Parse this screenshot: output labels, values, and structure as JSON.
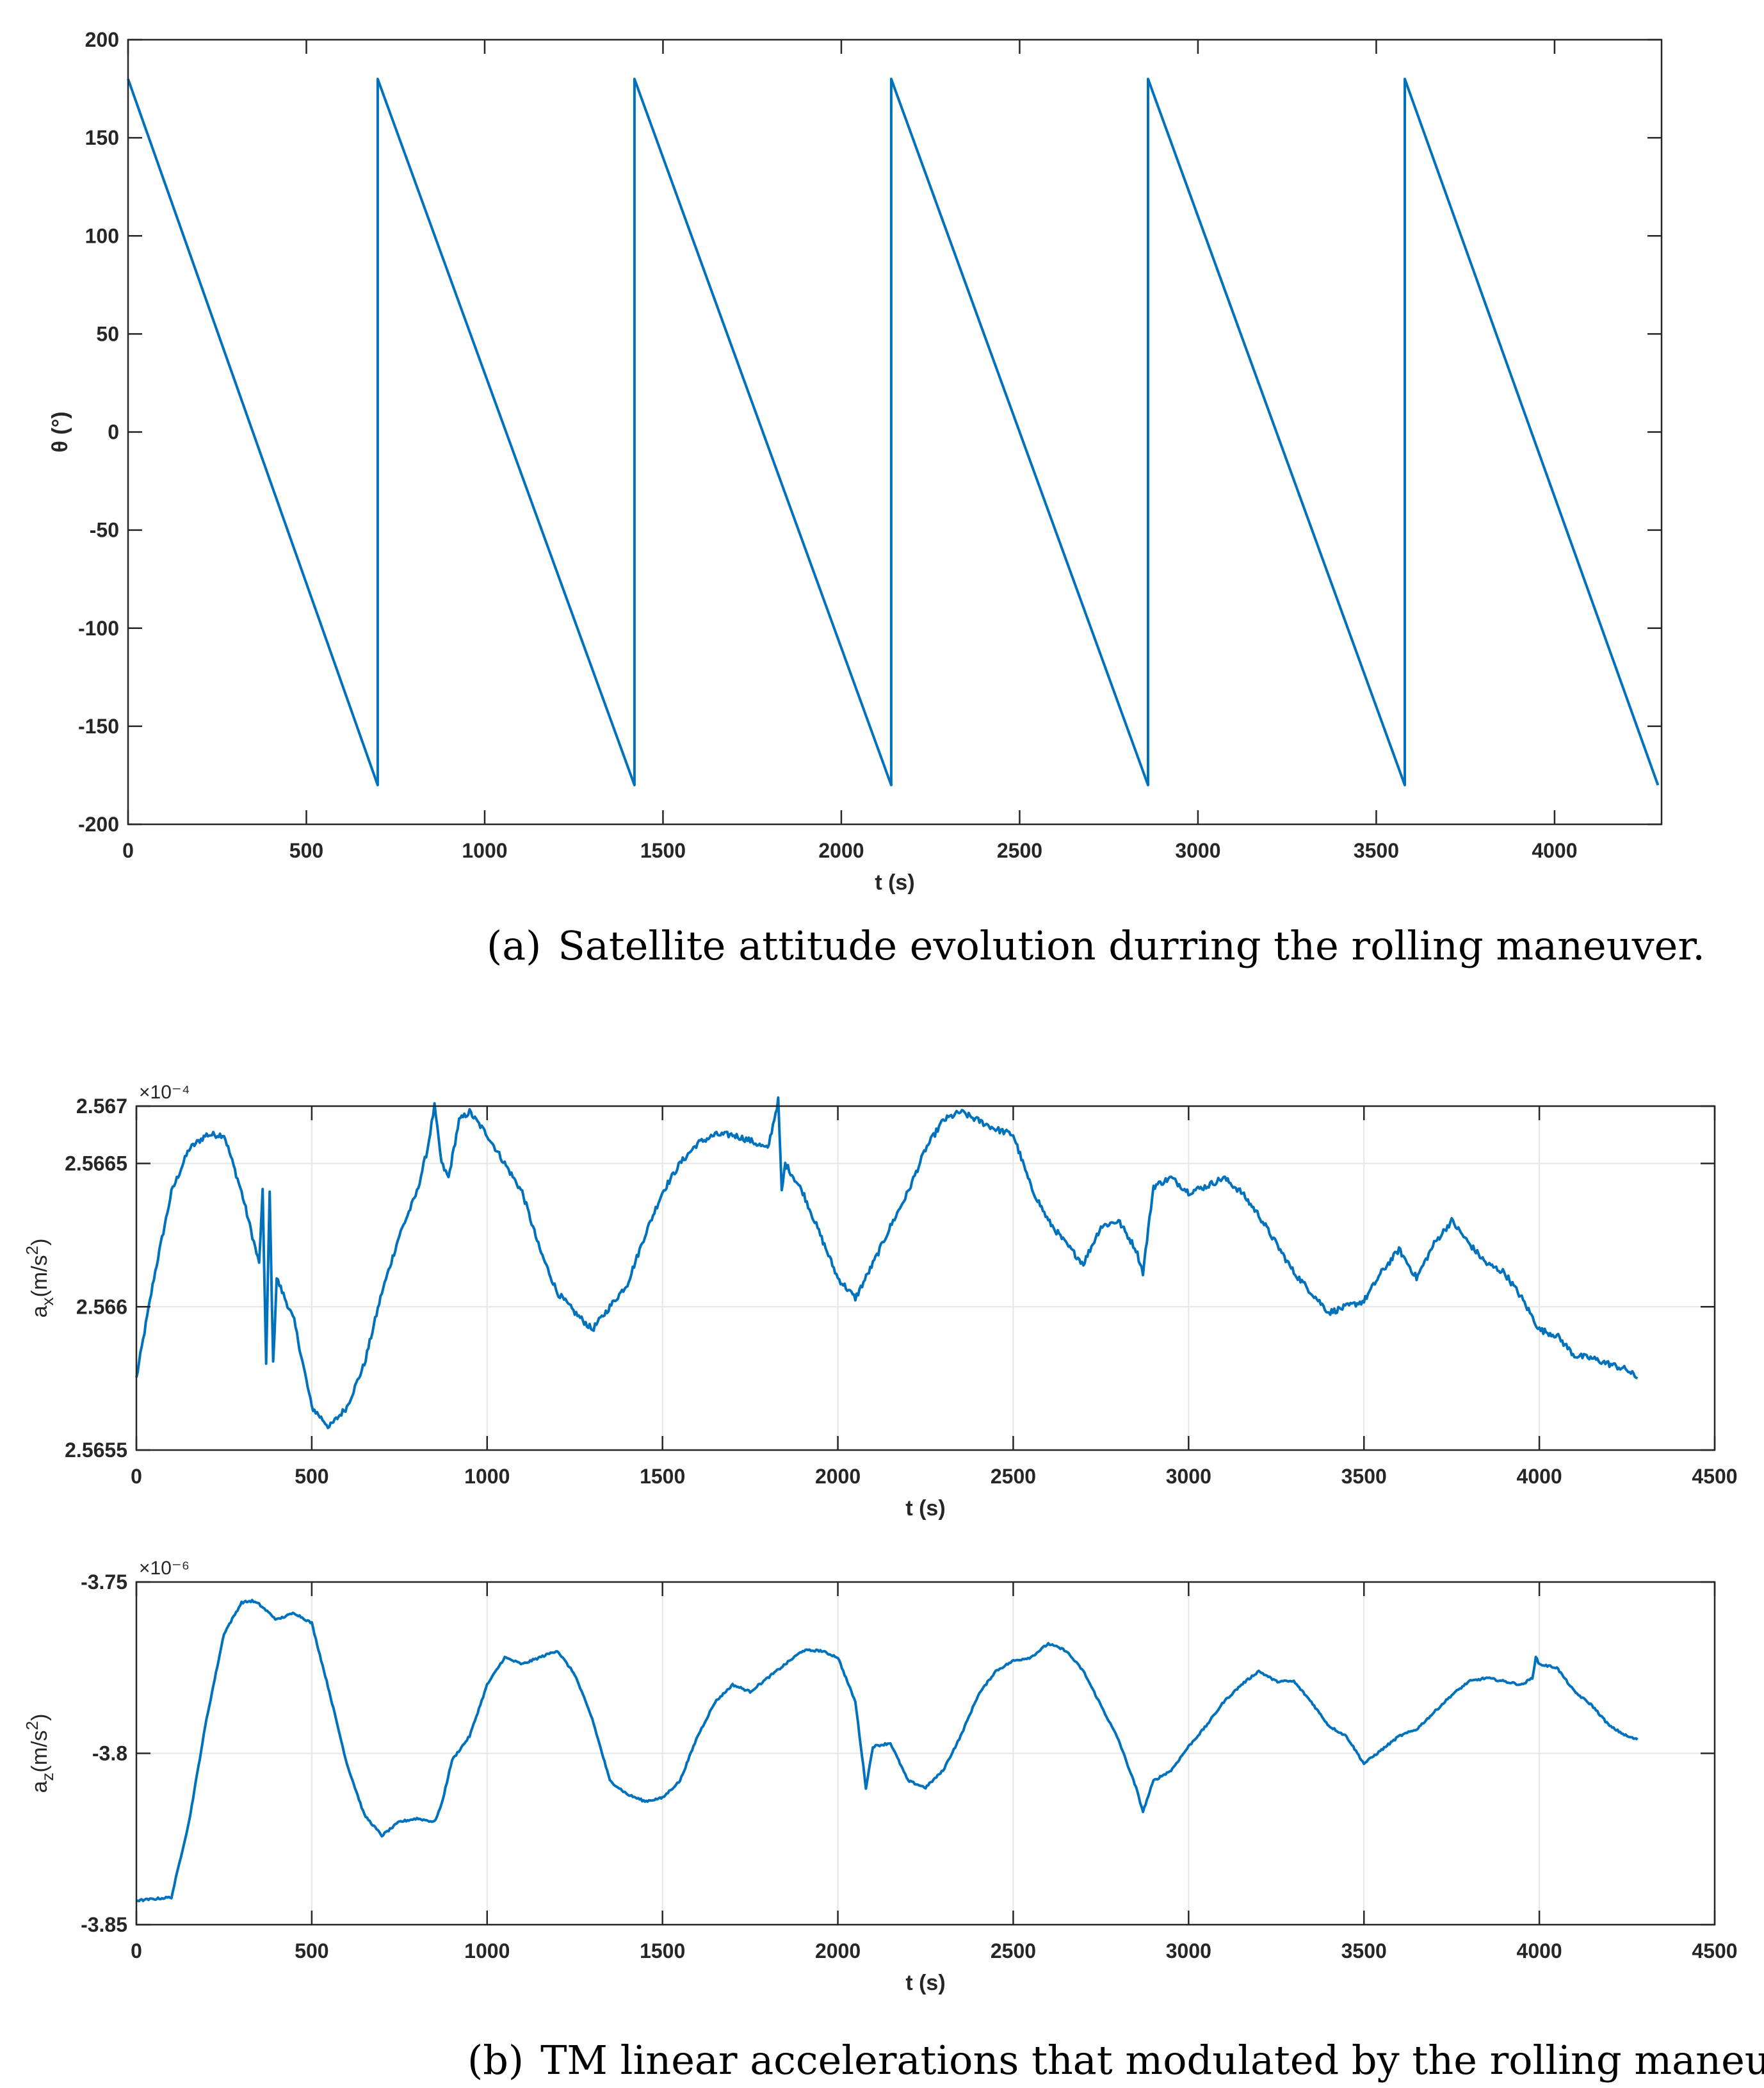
{
  "colors": {
    "line": "#0072BD",
    "axis": "#262626",
    "grid": "#e6e6e6",
    "background": "#ffffff"
  },
  "captions": {
    "a": {
      "tag": "(a)",
      "text": "Satellite attitude evolution durring the rolling maneuver."
    },
    "b": {
      "tag": "(b)",
      "text": "TM linear accelerations that modulated by the rolling maneuver."
    }
  },
  "chart_data": [
    {
      "type": "line",
      "id": "theta",
      "title": "",
      "xlabel": "t (s)",
      "ylabel": "θ (°)",
      "xlim": [
        0,
        4300
      ],
      "ylim": [
        -200,
        200
      ],
      "xticks": [
        0,
        500,
        1000,
        1500,
        2000,
        2500,
        3000,
        3500,
        4000
      ],
      "yticks": [
        -200,
        -150,
        -100,
        -50,
        0,
        50,
        100,
        150,
        200
      ],
      "xtick_labels": [
        "0",
        "500",
        "1000",
        "1500",
        "2000",
        "2500",
        "3000",
        "3500",
        "4000"
      ],
      "ytick_labels": [
        "-200",
        "-150",
        "-100",
        "-50",
        "0",
        "50",
        "100",
        "150",
        "200"
      ],
      "grid": false,
      "exponent": "",
      "series": [
        {
          "name": "theta",
          "x": [
            0,
            700,
            700,
            1420,
            1420,
            2140,
            2140,
            2860,
            2860,
            3580,
            3580,
            4290
          ],
          "y": [
            180,
            -180,
            180,
            -180,
            180,
            -180,
            180,
            -180,
            180,
            -180,
            180,
            -180
          ]
        }
      ]
    },
    {
      "type": "line",
      "id": "ax",
      "title": "",
      "xlabel": "t (s)",
      "ylabel": "a_x(m/s^2)",
      "xlim": [
        0,
        4500
      ],
      "ylim": [
        2.5655,
        2.5667
      ],
      "xticks": [
        0,
        500,
        1000,
        1500,
        2000,
        2500,
        3000,
        3500,
        4000,
        4500
      ],
      "yticks": [
        2.5655,
        2.566,
        2.5665,
        2.5667
      ],
      "xtick_labels": [
        "0",
        "500",
        "1000",
        "1500",
        "2000",
        "2500",
        "3000",
        "3500",
        "4000",
        "4500"
      ],
      "ytick_labels": [
        "2.5655",
        "2.566",
        "2.5665",
        "2.567"
      ],
      "grid": true,
      "exponent": "×10⁻⁴",
      "series": [
        {
          "name": "ax",
          "x": [
            0,
            50,
            100,
            150,
            200,
            250,
            300,
            350,
            360,
            370,
            380,
            390,
            400,
            450,
            500,
            550,
            600,
            650,
            700,
            750,
            800,
            830,
            850,
            870,
            890,
            920,
            950,
            1000,
            1050,
            1100,
            1150,
            1200,
            1250,
            1300,
            1350,
            1400,
            1450,
            1500,
            1550,
            1600,
            1650,
            1700,
            1750,
            1800,
            1830,
            1840,
            1850,
            1900,
            1950,
            2000,
            2050,
            2100,
            2150,
            2200,
            2250,
            2300,
            2350,
            2400,
            2450,
            2500,
            2550,
            2600,
            2650,
            2700,
            2750,
            2800,
            2850,
            2870,
            2900,
            2950,
            3000,
            3050,
            3100,
            3150,
            3200,
            3250,
            3300,
            3350,
            3400,
            3450,
            3500,
            3550,
            3600,
            3650,
            3700,
            3750,
            3800,
            3850,
            3900,
            3950,
            4000,
            4050,
            4100,
            4150,
            4200,
            4250,
            4280
          ],
          "y": [
            2.56575,
            2.5661,
            2.5664,
            2.56655,
            2.5666,
            2.5666,
            2.5664,
            2.56615,
            2.5664,
            2.5658,
            2.5664,
            2.5658,
            2.5661,
            2.56595,
            2.56565,
            2.56558,
            2.56565,
            2.5658,
            2.56605,
            2.56625,
            2.5664,
            2.56655,
            2.5667,
            2.5665,
            2.56645,
            2.56665,
            2.56668,
            2.5666,
            2.5665,
            2.5664,
            2.5662,
            2.56605,
            2.56598,
            2.56592,
            2.566,
            2.56608,
            2.56625,
            2.5664,
            2.5665,
            2.56657,
            2.5666,
            2.5666,
            2.56658,
            2.56655,
            2.56672,
            2.5664,
            2.5665,
            2.5664,
            2.56625,
            2.5661,
            2.56603,
            2.56615,
            2.56628,
            2.5664,
            2.56655,
            2.56665,
            2.56668,
            2.56665,
            2.56662,
            2.5666,
            2.56642,
            2.5663,
            2.56622,
            2.56615,
            2.56628,
            2.5663,
            2.5662,
            2.56612,
            2.56642,
            2.56645,
            2.5664,
            2.56642,
            2.56645,
            2.5664,
            2.56632,
            2.56622,
            2.56612,
            2.56605,
            2.56598,
            2.566,
            2.56602,
            2.56612,
            2.5662,
            2.5661,
            2.56622,
            2.5663,
            2.56622,
            2.56615,
            2.56612,
            2.56603,
            2.56592,
            2.5659,
            2.56583,
            2.56582,
            2.5658,
            2.56578,
            2.56575
          ]
        }
      ]
    },
    {
      "type": "line",
      "id": "az",
      "title": "",
      "xlabel": "t (s)",
      "ylabel": "a_z(m/s^2)",
      "xlim": [
        0,
        4500
      ],
      "ylim": [
        -3.85,
        -3.75
      ],
      "xticks": [
        0,
        500,
        1000,
        1500,
        2000,
        2500,
        3000,
        3500,
        4000,
        4500
      ],
      "yticks": [
        -3.85,
        -3.8,
        -3.75
      ],
      "xtick_labels": [
        "0",
        "500",
        "1000",
        "1500",
        "2000",
        "2500",
        "3000",
        "3500",
        "4000",
        "4500"
      ],
      "ytick_labels": [
        "-3.85",
        "-3.8",
        "-3.75"
      ],
      "grid": true,
      "exponent": "×10⁻⁶",
      "series": [
        {
          "name": "az",
          "x": [
            0,
            50,
            100,
            150,
            200,
            250,
            300,
            330,
            350,
            400,
            450,
            500,
            550,
            600,
            650,
            700,
            750,
            800,
            850,
            870,
            900,
            950,
            1000,
            1050,
            1100,
            1150,
            1200,
            1250,
            1300,
            1350,
            1400,
            1450,
            1500,
            1550,
            1600,
            1650,
            1700,
            1750,
            1800,
            1850,
            1900,
            1950,
            2000,
            2050,
            2080,
            2100,
            2150,
            2200,
            2250,
            2300,
            2350,
            2400,
            2450,
            2500,
            2550,
            2600,
            2650,
            2700,
            2750,
            2800,
            2850,
            2870,
            2900,
            2950,
            3000,
            3050,
            3100,
            3150,
            3200,
            3250,
            3300,
            3350,
            3400,
            3450,
            3500,
            3550,
            3600,
            3650,
            3700,
            3750,
            3800,
            3850,
            3900,
            3950,
            3980,
            3990,
            4000,
            4050,
            4100,
            4150,
            4200,
            4250,
            4280
          ],
          "y": [
            -3.843,
            -3.8425,
            -3.842,
            -3.82,
            -3.79,
            -3.765,
            -3.756,
            -3.7555,
            -3.7565,
            -3.761,
            -3.759,
            -3.762,
            -3.782,
            -3.803,
            -3.818,
            -3.824,
            -3.82,
            -3.819,
            -3.82,
            -3.815,
            -3.802,
            -3.795,
            -3.78,
            -3.772,
            -3.774,
            -3.772,
            -3.77,
            -3.777,
            -3.79,
            -3.808,
            -3.812,
            -3.814,
            -3.813,
            -3.808,
            -3.795,
            -3.785,
            -3.78,
            -3.782,
            -3.778,
            -3.774,
            -3.77,
            -3.77,
            -3.772,
            -3.785,
            -3.81,
            -3.798,
            -3.797,
            -3.808,
            -3.81,
            -3.805,
            -3.795,
            -3.783,
            -3.776,
            -3.773,
            -3.772,
            -3.768,
            -3.77,
            -3.776,
            -3.786,
            -3.796,
            -3.81,
            -3.817,
            -3.808,
            -3.805,
            -3.798,
            -3.792,
            -3.785,
            -3.78,
            -3.776,
            -3.779,
            -3.779,
            -3.785,
            -3.792,
            -3.795,
            -3.803,
            -3.799,
            -3.795,
            -3.793,
            -3.788,
            -3.783,
            -3.779,
            -3.778,
            -3.779,
            -3.78,
            -3.778,
            -3.772,
            -3.774,
            -3.775,
            -3.782,
            -3.786,
            -3.792,
            -3.795,
            -3.796
          ]
        }
      ]
    }
  ]
}
